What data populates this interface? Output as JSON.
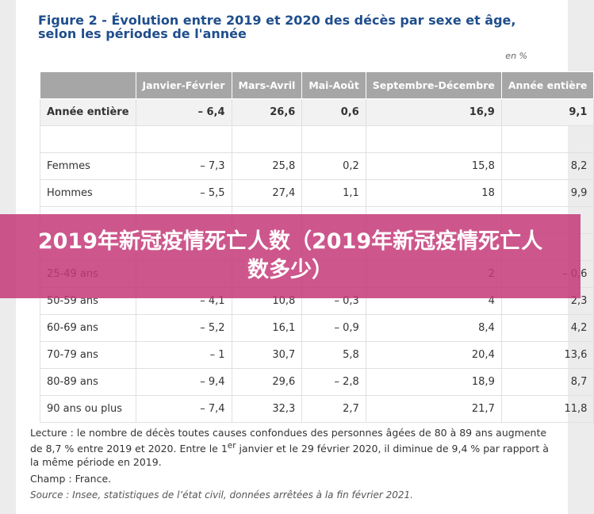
{
  "title": "Figure 2 - Évolution entre 2019 et 2020 des décès par sexe et âge, selon les périodes de l'année",
  "unit": "en %",
  "table": {
    "header": [
      "Janvier-Février",
      "Mars-Avril",
      "Mai-Août",
      "Septembre-Décembre",
      "Année entière"
    ],
    "rows": [
      [
        "Année entière",
        "– 6,4",
        "26,6",
        "0,6",
        "16,9",
        "9,1"
      ],
      [
        null,
        null,
        null,
        null,
        null,
        null
      ],
      [
        "Femmes",
        "– 7,3",
        "25,8",
        "0,2",
        "15,8",
        "8,2"
      ],
      [
        "Hommes",
        "– 5,5",
        "27,4",
        "1,1",
        "18",
        "9,9"
      ],
      [
        null,
        null,
        null,
        null,
        null,
        null
      ],
      [
        null,
        null,
        null,
        null,
        null,
        null
      ],
      [
        "25-49 ans",
        null,
        null,
        null,
        "2",
        "– 0,6"
      ],
      [
        "50-59 ans",
        "– 4,1",
        "10,8",
        "– 0,3",
        "4",
        "2,3"
      ],
      [
        "60-69 ans",
        "– 5,2",
        "16,1",
        "– 0,9",
        "8,4",
        "4,2"
      ],
      [
        "70-79 ans",
        "– 1",
        "30,7",
        "5,8",
        "20,4",
        "13,6"
      ],
      [
        "80-89 ans",
        "– 9,4",
        "29,6",
        "– 2,8",
        "18,9",
        "8,7"
      ],
      [
        "90 ans ou plus",
        "– 7,4",
        "32,3",
        "2,7",
        "21,7",
        "11,8"
      ]
    ]
  },
  "notes": {
    "lecture_before": "Lecture : le nombre de décès toutes causes confondues des personnes âgées de 80 à 89 ans augmente de 8,7 % entre 2019 et 2020. Entre le 1",
    "lecture_sup": "er",
    "lecture_after": " janvier et le 29 février 2020, il diminue de 9,4 % par rapport à la même période en 2019.",
    "champ": "Champ : France.",
    "source": "Source : Insee, statistiques de l’état civil, données arrêtées à la fin février 2021."
  },
  "banner": "2019年新冠疫情死亡人数（2019年新冠疫情死亡人数多少）"
}
